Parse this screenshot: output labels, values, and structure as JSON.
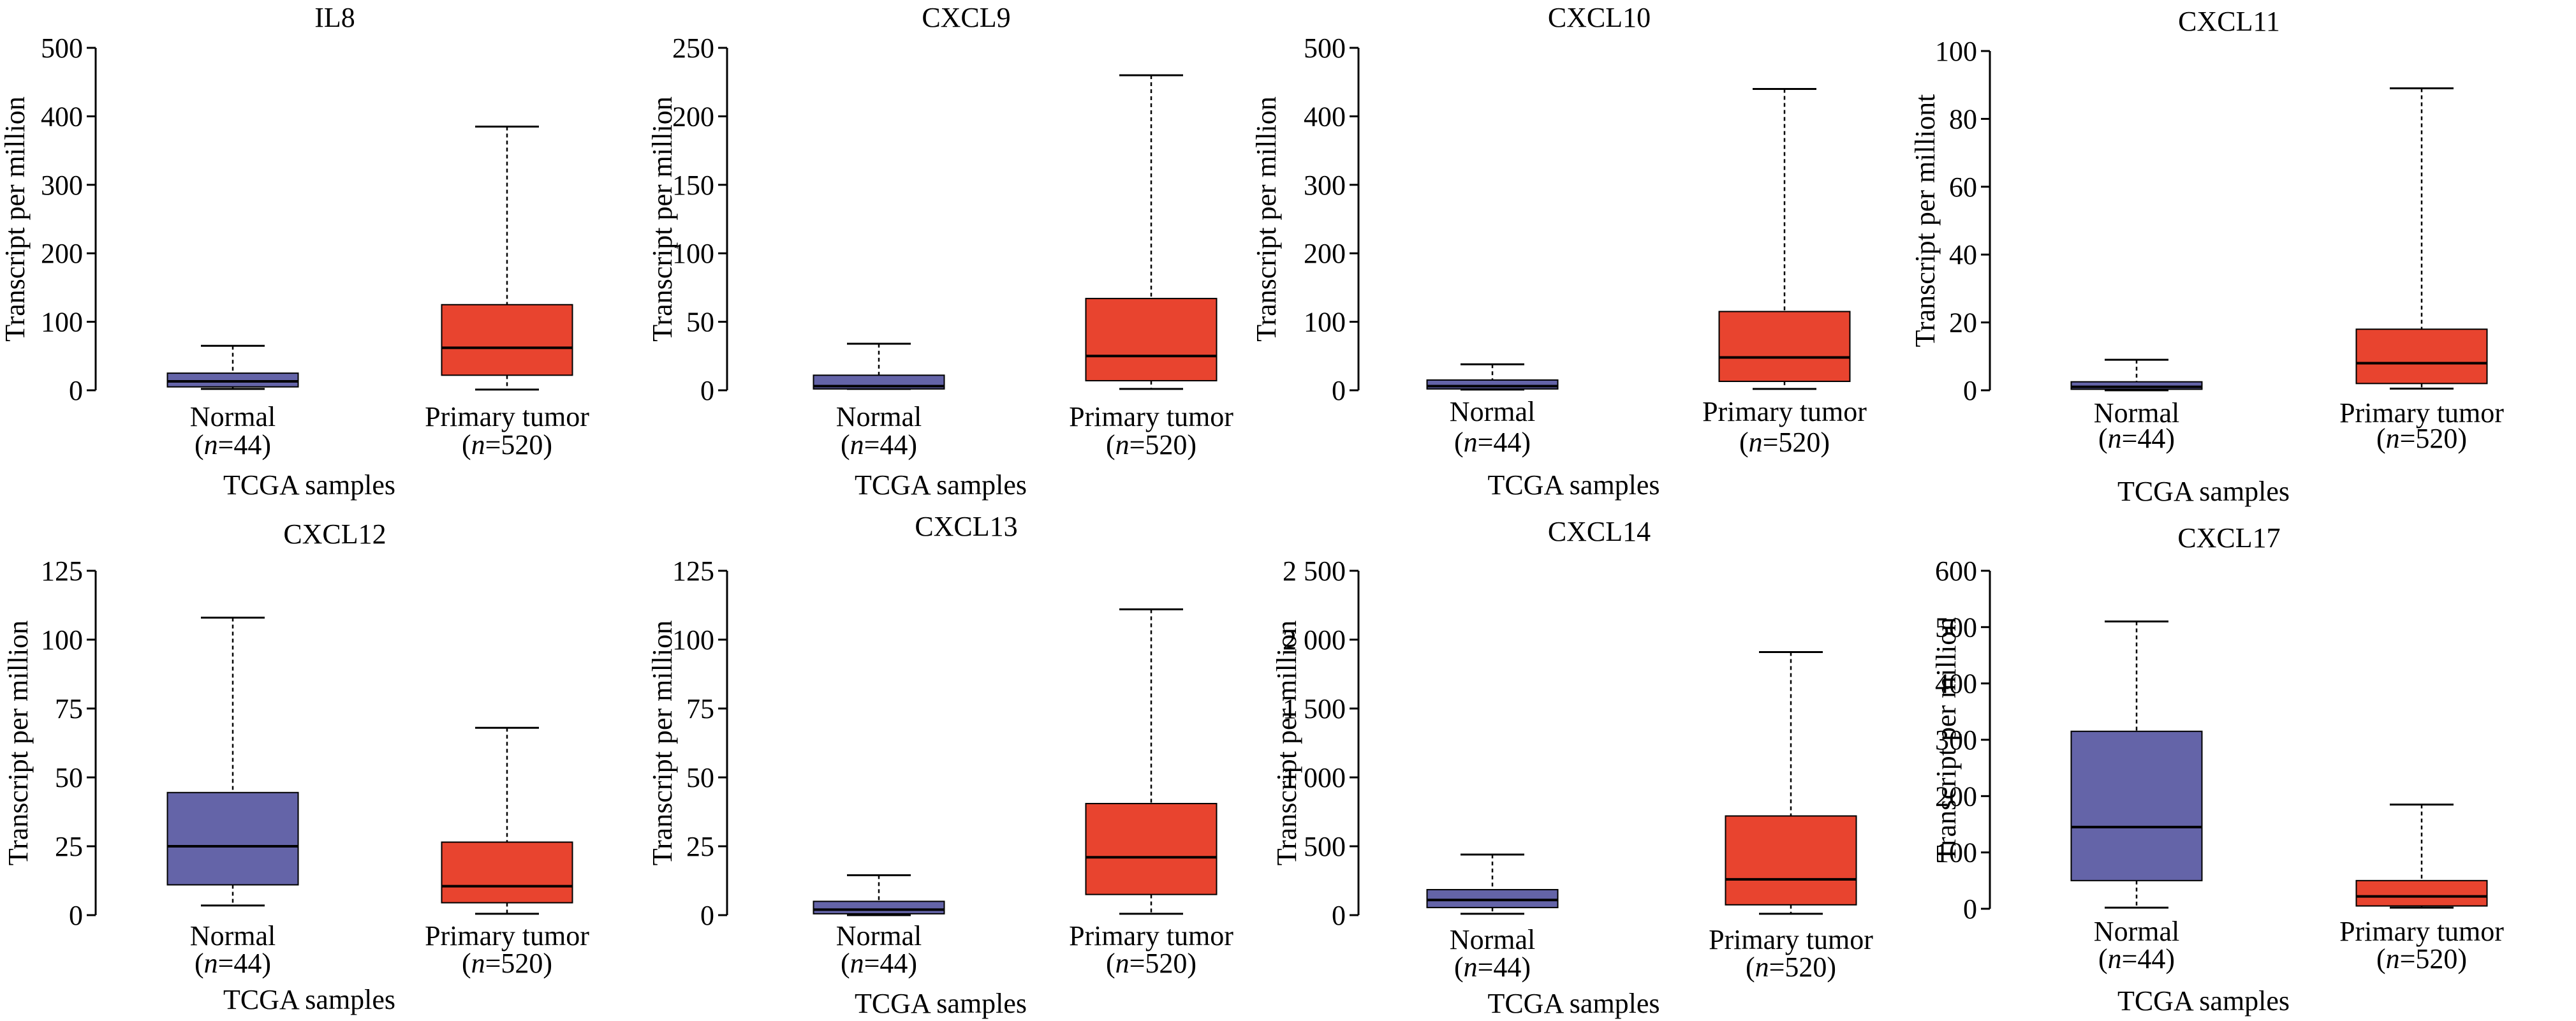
{
  "figure": {
    "colors": {
      "normal": "#6464a8",
      "tumor": "#e8442f",
      "median": "#000000"
    },
    "y_axis_label": "Transcript per million",
    "x_axis_label": "TCGA samples"
  },
  "chart_data": [
    {
      "type": "box",
      "title": "IL8",
      "ylabel": "Transcript per million",
      "xlabel": "TCGA samples",
      "ylim": [
        0,
        500
      ],
      "yticks": [
        0,
        100,
        200,
        300,
        400,
        500
      ],
      "ytick_labels": [
        "0",
        "100",
        "200",
        "300",
        "400",
        "500"
      ],
      "categories": [
        {
          "label": "Normal",
          "n_prefix": "(",
          "n_var": "n",
          "n_rest": "=44)",
          "color": "normal",
          "min": 2,
          "q1": 5,
          "median": 13,
          "q3": 25,
          "max": 65
        },
        {
          "label": "Primary tumor",
          "n_prefix": "(",
          "n_var": "n",
          "n_rest": "=520)",
          "color": "tumor",
          "min": 1,
          "q1": 22,
          "median": 62,
          "q3": 125,
          "max": 385
        }
      ]
    },
    {
      "type": "box",
      "title": "CXCL9",
      "ylabel": "Transcript per million",
      "xlabel": "TCGA samples",
      "ylim": [
        0,
        250
      ],
      "yticks": [
        0,
        50,
        100,
        150,
        200,
        250
      ],
      "ytick_labels": [
        "0",
        "50",
        "100",
        "150",
        "200",
        "250"
      ],
      "categories": [
        {
          "label": "Normal",
          "n_prefix": "(",
          "n_var": "n",
          "n_rest": "=44)",
          "color": "normal",
          "min": 1,
          "q1": 1,
          "median": 3,
          "q3": 11,
          "max": 34
        },
        {
          "label": "Primary tumor",
          "n_prefix": "(",
          "n_var": "n",
          "n_rest": "=520)",
          "color": "tumor",
          "min": 1,
          "q1": 7,
          "median": 25,
          "q3": 67,
          "max": 230
        }
      ]
    },
    {
      "type": "box",
      "title": "CXCL10",
      "ylabel": "Transcript per million",
      "xlabel": "TCGA samples",
      "ylim": [
        0,
        500
      ],
      "yticks": [
        0,
        100,
        200,
        300,
        400,
        500
      ],
      "ytick_labels": [
        "0",
        "100",
        "200",
        "300",
        "400",
        "500"
      ],
      "categories": [
        {
          "label": "Normal",
          "n_prefix": "(",
          "n_var": "n",
          "n_rest": "=44)",
          "color": "normal",
          "min": 1,
          "q1": 2,
          "median": 6,
          "q3": 15,
          "max": 38
        },
        {
          "label": "Primary tumor",
          "n_prefix": "(",
          "n_var": "n",
          "n_rest": "=520)",
          "color": "tumor",
          "min": 2,
          "q1": 13,
          "median": 48,
          "q3": 115,
          "max": 440
        }
      ]
    },
    {
      "type": "box",
      "title": "CXCL11",
      "ylabel": "Transcript per milliont",
      "xlabel": "TCGA samples",
      "ylim": [
        0,
        100
      ],
      "yticks": [
        0,
        20,
        40,
        60,
        80,
        100
      ],
      "ytick_labels": [
        "0",
        "20",
        "40",
        "60",
        "80",
        "100"
      ],
      "categories": [
        {
          "label": "Normal",
          "n_prefix": "(",
          "n_var": "n",
          "n_rest": "=44)",
          "color": "normal",
          "min": 0,
          "q1": 0.3,
          "median": 1,
          "q3": 2.5,
          "max": 9
        },
        {
          "label": "Primary tumor",
          "n_prefix": "(",
          "n_var": "n",
          "n_rest": "=520)",
          "color": "tumor",
          "min": 0.5,
          "q1": 2,
          "median": 8,
          "q3": 18,
          "max": 89
        }
      ]
    },
    {
      "type": "box",
      "title": "CXCL12",
      "ylabel": "Transcript per million",
      "xlabel": "TCGA samples",
      "ylim": [
        0,
        125
      ],
      "yticks": [
        0,
        25,
        50,
        75,
        100,
        125
      ],
      "ytick_labels": [
        "0",
        "25",
        "50",
        "75",
        "100",
        "125"
      ],
      "categories": [
        {
          "label": "Normal",
          "n_prefix": "(",
          "n_var": "n",
          "n_rest": "=44)",
          "color": "normal",
          "min": 3.5,
          "q1": 11,
          "median": 25,
          "q3": 44.5,
          "max": 108
        },
        {
          "label": "Primary tumor",
          "n_prefix": "(",
          "n_var": "n",
          "n_rest": "=520)",
          "color": "tumor",
          "min": 0.5,
          "q1": 4.5,
          "median": 10.5,
          "q3": 26.5,
          "max": 68
        }
      ]
    },
    {
      "type": "box",
      "title": "CXCL13",
      "ylabel": "Transcript per million",
      "xlabel": "TCGA samples",
      "ylim": [
        0,
        125
      ],
      "yticks": [
        0,
        25,
        50,
        75,
        100,
        125
      ],
      "ytick_labels": [
        "0",
        "25",
        "50",
        "75",
        "100",
        "125"
      ],
      "categories": [
        {
          "label": "Normal",
          "n_prefix": "(",
          "n_var": "n",
          "n_rest": "=44)",
          "color": "normal",
          "min": 0,
          "q1": 0.5,
          "median": 2,
          "q3": 5,
          "max": 14.5
        },
        {
          "label": "Primary tumor",
          "n_prefix": "(",
          "n_var": "n",
          "n_rest": "=520)",
          "color": "tumor",
          "min": 0.5,
          "q1": 7.5,
          "median": 21,
          "q3": 40.5,
          "max": 111
        }
      ]
    },
    {
      "type": "box",
      "title": "CXCL14",
      "ylabel": "Transcript per million",
      "xlabel": "TCGA samples",
      "ylim": [
        0,
        2500
      ],
      "yticks": [
        0,
        500,
        1000,
        1500,
        2000,
        2500
      ],
      "ytick_labels": [
        "0",
        "500",
        "1 000",
        "1 500",
        "2 000",
        "2 500"
      ],
      "categories": [
        {
          "label": "Normal",
          "n_prefix": "(",
          "n_var": "n",
          "n_rest": "=44)",
          "color": "normal",
          "min": 10,
          "q1": 55,
          "median": 110,
          "q3": 185,
          "max": 440
        },
        {
          "label": "Primary tumor",
          "n_prefix": "(",
          "n_var": "n",
          "n_rest": "=520)",
          "color": "tumor",
          "min": 10,
          "q1": 75,
          "median": 260,
          "q3": 720,
          "max": 1910
        }
      ]
    },
    {
      "type": "box",
      "title": "CXCL17",
      "ylabel": "Transcript per million",
      "xlabel": "TCGA samples",
      "ylim": [
        0,
        600
      ],
      "yticks": [
        0,
        100,
        200,
        300,
        400,
        500,
        600
      ],
      "ytick_labels": [
        "0",
        "100",
        "200",
        "300",
        "400",
        "500",
        "600"
      ],
      "categories": [
        {
          "label": "Normal",
          "n_prefix": "(",
          "n_var": "n",
          "n_rest": "=44)",
          "color": "normal",
          "min": 2,
          "q1": 50,
          "median": 145,
          "q3": 315,
          "max": 510
        },
        {
          "label": "Primary tumor",
          "n_prefix": "(",
          "n_var": "n",
          "n_rest": "=520)",
          "color": "tumor",
          "min": 2,
          "q1": 5,
          "median": 22,
          "q3": 50,
          "max": 185
        }
      ]
    }
  ]
}
